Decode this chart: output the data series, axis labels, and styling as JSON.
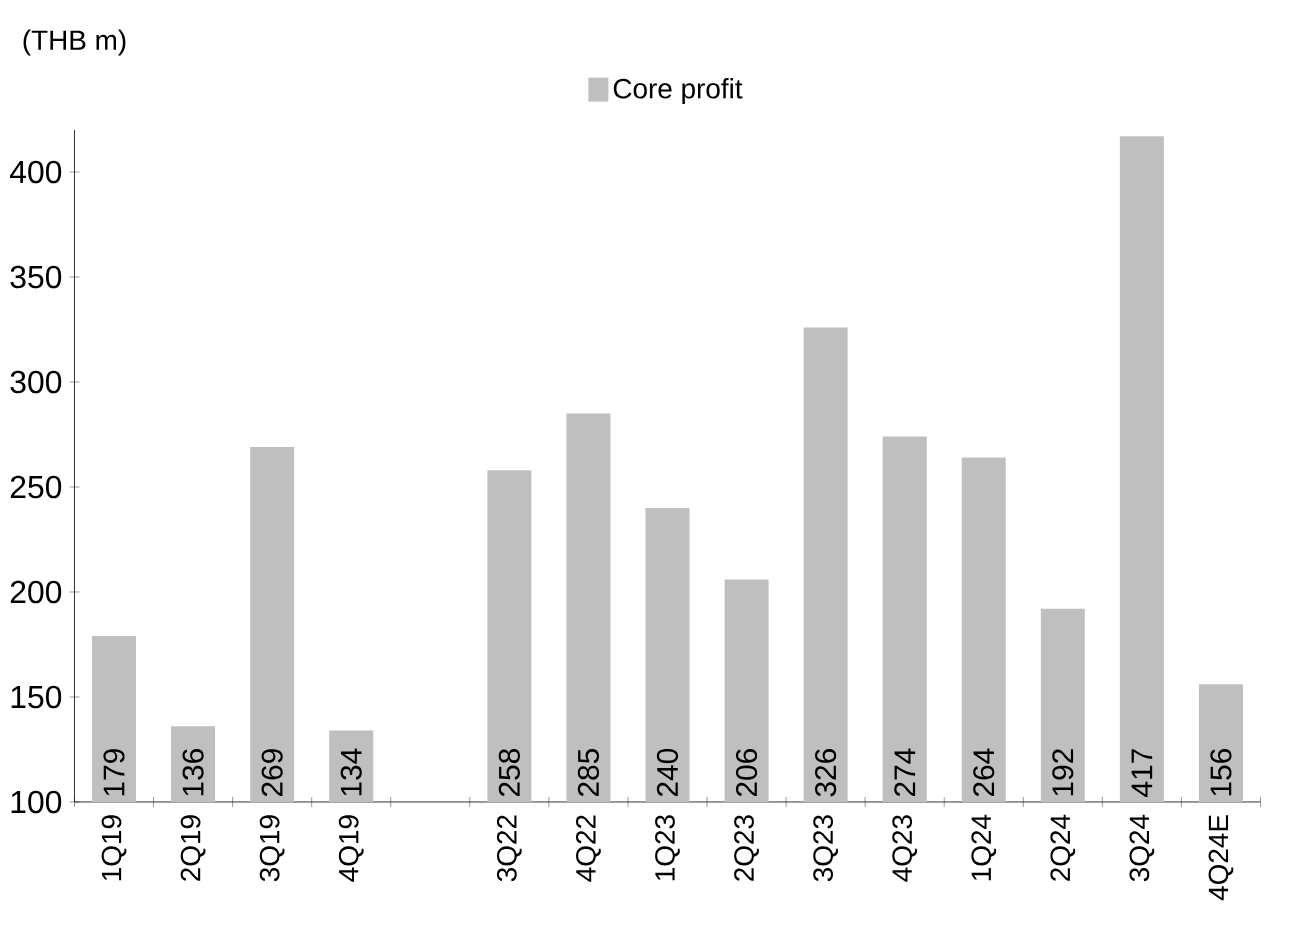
{
  "chart_data": {
    "type": "bar",
    "ylabel": "(THB m)",
    "categories": [
      "1Q19",
      "2Q19",
      "3Q19",
      "4Q19",
      null,
      "3Q22",
      "4Q22",
      "1Q23",
      "2Q23",
      "3Q23",
      "4Q23",
      "1Q24",
      "2Q24",
      "3Q24",
      "4Q24E"
    ],
    "series": [
      {
        "name": "Core profit",
        "color": "#bfbfbf",
        "values": [
          179,
          136,
          269,
          134,
          null,
          258,
          285,
          240,
          206,
          326,
          274,
          264,
          192,
          417,
          156
        ]
      }
    ],
    "ylim": [
      100,
      420
    ],
    "yticks": [
      100,
      150,
      200,
      250,
      300,
      350,
      400
    ],
    "data_labels": true,
    "legend": "top",
    "grid": false
  }
}
